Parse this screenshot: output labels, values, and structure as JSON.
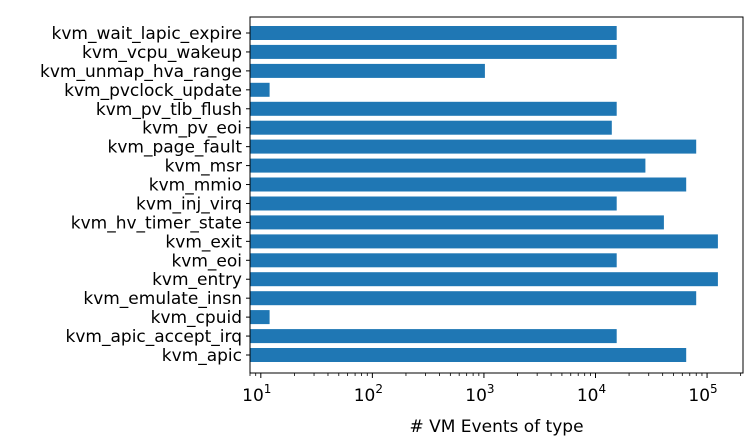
{
  "chart_data": {
    "type": "bar",
    "orientation": "horizontal",
    "xscale": "log",
    "xlabel": "# VM Events of type",
    "ylabel": "",
    "title": "",
    "xlim": [
      8,
      210000
    ],
    "grid": false,
    "bar_color": "#1f77b4",
    "categories": [
      "kvm_apic",
      "kvm_apic_accept_irq",
      "kvm_cpuid",
      "kvm_emulate_insn",
      "kvm_entry",
      "kvm_eoi",
      "kvm_exit",
      "kvm_hv_timer_state",
      "kvm_inj_virq",
      "kvm_mmio",
      "kvm_msr",
      "kvm_page_fault",
      "kvm_pv_eoi",
      "kvm_pv_tlb_flush",
      "kvm_pvclock_update",
      "kvm_unmap_hva_range",
      "kvm_vcpu_wakeup",
      "kvm_wait_lapic_expire"
    ],
    "values": [
      65000,
      15500,
      12,
      80000,
      125000,
      15500,
      125000,
      41000,
      15500,
      65000,
      28000,
      80000,
      14000,
      15500,
      12,
      1020,
      15500,
      15500
    ],
    "xticks": [
      {
        "value": 10,
        "base": "10",
        "exp": "1"
      },
      {
        "value": 100,
        "base": "10",
        "exp": "2"
      },
      {
        "value": 1000,
        "base": "10",
        "exp": "3"
      },
      {
        "value": 10000,
        "base": "10",
        "exp": "4"
      },
      {
        "value": 100000,
        "base": "10",
        "exp": "5"
      }
    ]
  }
}
